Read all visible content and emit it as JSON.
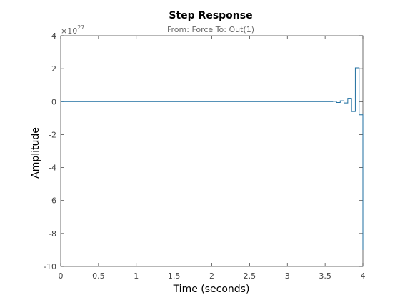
{
  "chart_data": {
    "type": "line",
    "title": "Step Response",
    "subtitle": "From: Force  To: Out(1)",
    "xlabel": "Time (seconds)",
    "ylabel": "Amplitude",
    "exponent_base": "×10",
    "exponent_power": "27",
    "xlim": [
      0,
      4
    ],
    "ylim": [
      -10,
      4
    ],
    "xticks": [
      "0",
      "0.5",
      "1",
      "1.5",
      "2",
      "2.5",
      "3",
      "3.5",
      "4"
    ],
    "yticks": [
      "4",
      "2",
      "0",
      "-2",
      "-4",
      "-6",
      "-8",
      "-10"
    ],
    "xtick_values": [
      0,
      0.5,
      1,
      1.5,
      2,
      2.5,
      3,
      3.5,
      4
    ],
    "ytick_values": [
      4,
      2,
      0,
      -2,
      -4,
      -6,
      -8,
      -10
    ],
    "grid": false,
    "line_color": "#1f6fa0",
    "series": [
      {
        "x": [
          0,
          3.6,
          3.6,
          3.65,
          3.65,
          3.7,
          3.7,
          3.75,
          3.75,
          3.8,
          3.8,
          3.85,
          3.85,
          3.9,
          3.9,
          3.95,
          3.95,
          4.0,
          4.0
        ],
        "y": [
          0,
          0,
          0.02,
          0.02,
          -0.05,
          -0.05,
          0.05,
          0.05,
          -0.08,
          -0.08,
          0.2,
          0.2,
          -0.6,
          -0.6,
          2.05,
          2.05,
          -0.8,
          -0.8,
          -9.0
        ]
      }
    ]
  }
}
